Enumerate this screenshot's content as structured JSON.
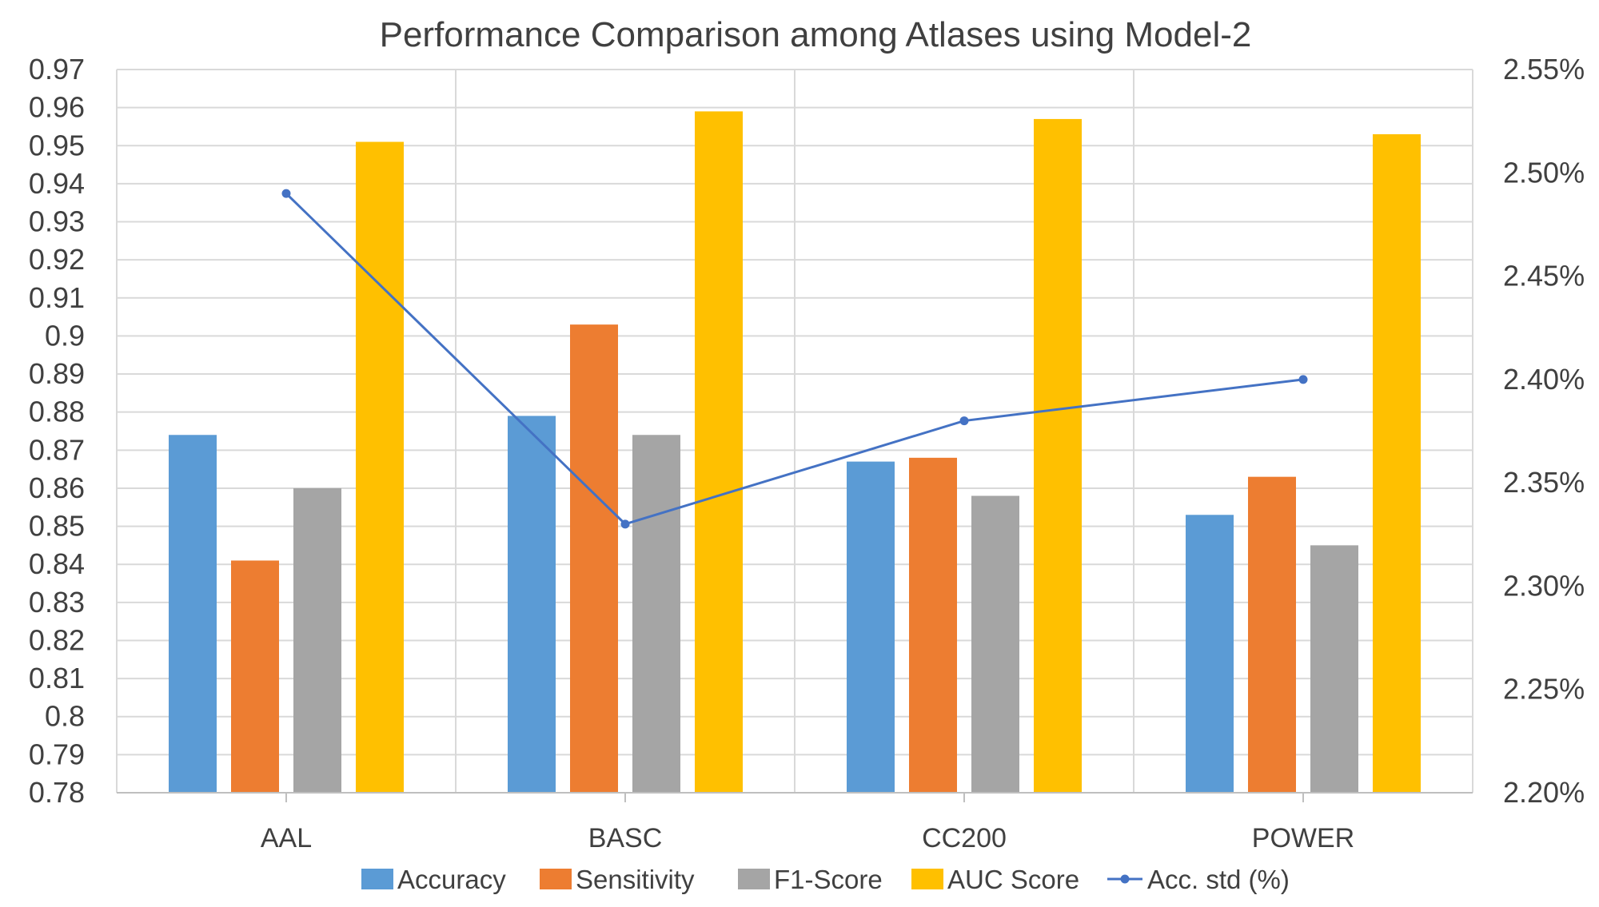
{
  "chart_data": {
    "type": "bar",
    "title": "Performance Comparison among Atlases using Model-2",
    "categories": [
      "AAL",
      "BASC",
      "CC200",
      "POWER"
    ],
    "series": [
      {
        "name": "Accuracy",
        "values": [
          0.874,
          0.879,
          0.867,
          0.853
        ],
        "color": "#5B9BD5"
      },
      {
        "name": "Sensitivity",
        "values": [
          0.841,
          0.903,
          0.868,
          0.863
        ],
        "color": "#ED7D31"
      },
      {
        "name": "F1-Score",
        "values": [
          0.86,
          0.874,
          0.858,
          0.845
        ],
        "color": "#A5A5A5"
      },
      {
        "name": "AUC Score",
        "values": [
          0.951,
          0.959,
          0.957,
          0.953
        ],
        "color": "#FFC000"
      }
    ],
    "line_series": {
      "name": "Acc. std (%)",
      "values": [
        2.49,
        2.33,
        2.38,
        2.4
      ],
      "color": "#4472C4",
      "axis": "right"
    },
    "ylim": [
      0.78,
      0.97
    ],
    "y_ticks": [
      "0.97",
      "0.96",
      "0.95",
      "0.94",
      "0.93",
      "0.92",
      "0.91",
      "0.9",
      "0.89",
      "0.88",
      "0.87",
      "0.86",
      "0.85",
      "0.84",
      "0.83",
      "0.82",
      "0.81",
      "0.8",
      "0.79",
      "0.78"
    ],
    "y2lim": [
      2.2,
      2.55
    ],
    "y2_ticks": [
      "2.55%",
      "2.50%",
      "2.45%",
      "2.40%",
      "2.35%",
      "2.30%",
      "2.25%",
      "2.20%"
    ],
    "grid": true,
    "legend_position": "bottom"
  }
}
